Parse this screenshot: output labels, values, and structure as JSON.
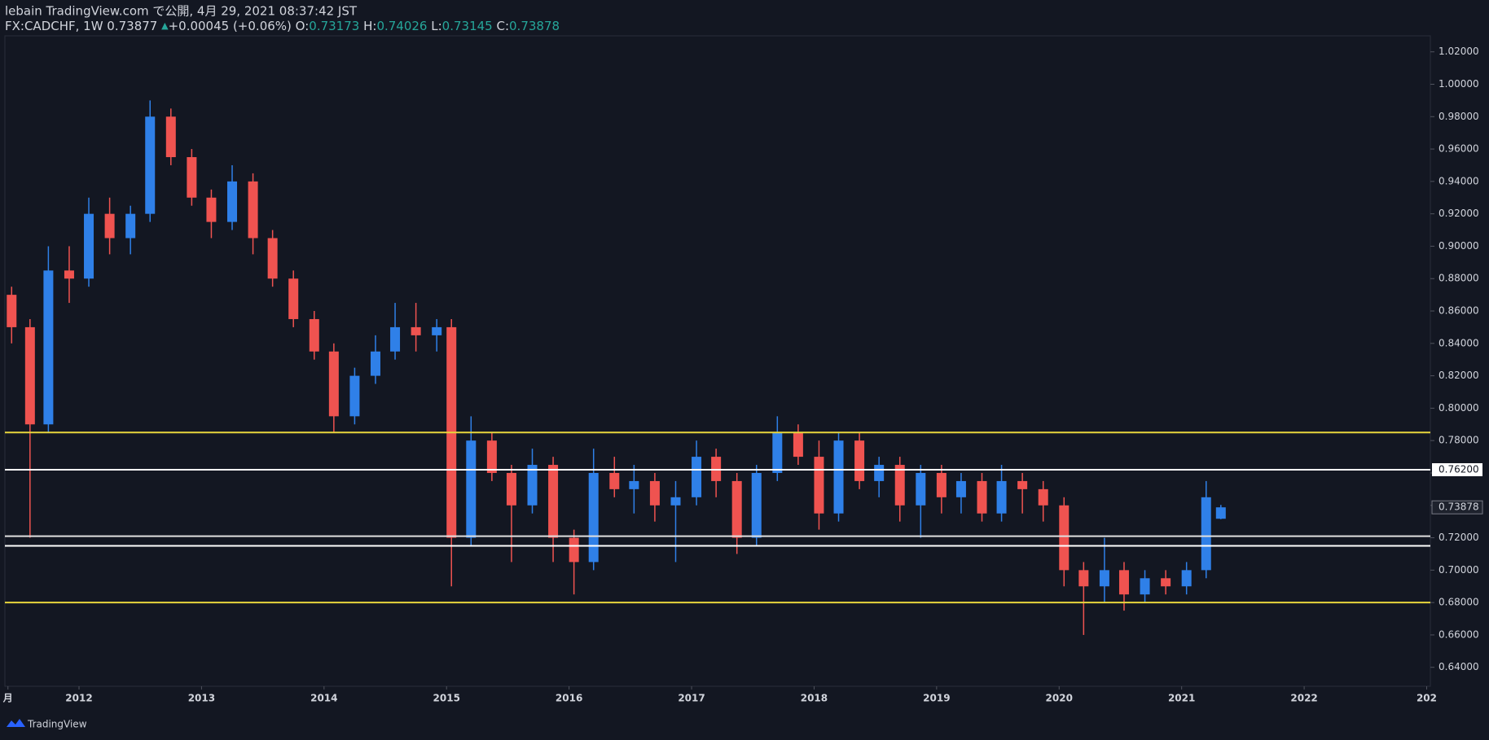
{
  "header": {
    "title": "lebain TradingView.com で公開, 4月 29, 2021 08:37:42 JST",
    "symbol": "FX:CADCHF, 1W 0.73877",
    "arrow": "▲",
    "change": "+0.00045 (+0.06%)",
    "ohlc": [
      {
        "key": "O:",
        "value": "0.73173"
      },
      {
        "key": "H:",
        "value": "0.74026"
      },
      {
        "key": "L:",
        "value": "0.73145"
      },
      {
        "key": "C:",
        "value": "0.73878"
      }
    ]
  },
  "footer": {
    "brand": "TradingView"
  },
  "chart_data": {
    "type": "candlestick",
    "up_color": "#2f80e8",
    "down_color": "#ef5350",
    "x": [
      2011.45,
      2011.6,
      2011.75,
      2011.92,
      2012.08,
      2012.25,
      2012.42,
      2012.58,
      2012.75,
      2012.92,
      2013.08,
      2013.25,
      2013.42,
      2013.58,
      2013.75,
      2013.92,
      2014.08,
      2014.25,
      2014.42,
      2014.58,
      2014.75,
      2014.92,
      2015.04,
      2015.2,
      2015.37,
      2015.53,
      2015.7,
      2015.87,
      2016.04,
      2016.2,
      2016.37,
      2016.53,
      2016.7,
      2016.87,
      2017.04,
      2017.2,
      2017.37,
      2017.53,
      2017.7,
      2017.87,
      2018.04,
      2018.2,
      2018.37,
      2018.53,
      2018.7,
      2018.87,
      2019.04,
      2019.2,
      2019.37,
      2019.53,
      2019.7,
      2019.87,
      2020.04,
      2020.2,
      2020.37,
      2020.53,
      2020.7,
      2020.87,
      2021.04,
      2021.2,
      2021.32
    ],
    "open": [
      0.87,
      0.85,
      0.79,
      0.885,
      0.88,
      0.92,
      0.905,
      0.92,
      0.98,
      0.955,
      0.93,
      0.915,
      0.94,
      0.905,
      0.88,
      0.855,
      0.835,
      0.795,
      0.82,
      0.835,
      0.85,
      0.845,
      0.85,
      0.72,
      0.78,
      0.76,
      0.74,
      0.765,
      0.72,
      0.705,
      0.76,
      0.75,
      0.755,
      0.74,
      0.745,
      0.77,
      0.755,
      0.72,
      0.76,
      0.785,
      0.77,
      0.735,
      0.78,
      0.755,
      0.765,
      0.74,
      0.76,
      0.745,
      0.755,
      0.735,
      0.755,
      0.75,
      0.74,
      0.7,
      0.69,
      0.7,
      0.685,
      0.695,
      0.69,
      0.7,
      0.73173
    ],
    "high": [
      0.875,
      0.855,
      0.9,
      0.9,
      0.93,
      0.93,
      0.925,
      0.99,
      0.985,
      0.96,
      0.935,
      0.95,
      0.945,
      0.91,
      0.885,
      0.86,
      0.84,
      0.825,
      0.845,
      0.865,
      0.865,
      0.855,
      0.855,
      0.795,
      0.785,
      0.765,
      0.775,
      0.77,
      0.725,
      0.775,
      0.77,
      0.765,
      0.76,
      0.755,
      0.78,
      0.775,
      0.76,
      0.765,
      0.795,
      0.79,
      0.78,
      0.785,
      0.785,
      0.77,
      0.77,
      0.765,
      0.765,
      0.76,
      0.76,
      0.765,
      0.76,
      0.755,
      0.745,
      0.705,
      0.72,
      0.705,
      0.7,
      0.7,
      0.705,
      0.755,
      0.74026
    ],
    "low": [
      0.84,
      0.72,
      0.785,
      0.865,
      0.875,
      0.895,
      0.895,
      0.915,
      0.95,
      0.925,
      0.905,
      0.91,
      0.895,
      0.875,
      0.85,
      0.83,
      0.785,
      0.79,
      0.815,
      0.83,
      0.835,
      0.835,
      0.69,
      0.715,
      0.755,
      0.705,
      0.735,
      0.705,
      0.685,
      0.7,
      0.745,
      0.735,
      0.73,
      0.705,
      0.74,
      0.745,
      0.71,
      0.715,
      0.755,
      0.765,
      0.725,
      0.73,
      0.75,
      0.745,
      0.73,
      0.72,
      0.735,
      0.735,
      0.73,
      0.73,
      0.735,
      0.73,
      0.69,
      0.66,
      0.68,
      0.675,
      0.68,
      0.685,
      0.685,
      0.695,
      0.73145
    ],
    "close": [
      0.85,
      0.79,
      0.885,
      0.88,
      0.92,
      0.905,
      0.92,
      0.98,
      0.955,
      0.93,
      0.915,
      0.94,
      0.905,
      0.88,
      0.855,
      0.835,
      0.795,
      0.82,
      0.835,
      0.85,
      0.845,
      0.85,
      0.72,
      0.78,
      0.76,
      0.74,
      0.765,
      0.72,
      0.705,
      0.76,
      0.75,
      0.755,
      0.74,
      0.745,
      0.77,
      0.755,
      0.72,
      0.76,
      0.785,
      0.77,
      0.735,
      0.78,
      0.755,
      0.765,
      0.74,
      0.76,
      0.745,
      0.755,
      0.735,
      0.755,
      0.75,
      0.74,
      0.7,
      0.69,
      0.7,
      0.685,
      0.695,
      0.69,
      0.7,
      0.745,
      0.73878
    ],
    "xlim": [
      2011.395,
      2023.03
    ],
    "xticks": [
      {
        "value": 2011.42,
        "label": "月"
      },
      2012,
      2013,
      2014,
      2015,
      2016,
      2017,
      2018,
      2019,
      2020,
      2021,
      2022,
      {
        "value": 2023,
        "label": "202"
      }
    ],
    "ylim": [
      0.6283,
      1.0299
    ],
    "yticks": [
      {
        "value": 0.64,
        "label": "0.64000"
      },
      {
        "value": 0.66,
        "label": "0.66000"
      },
      {
        "value": 0.68,
        "label": "0.68000"
      },
      {
        "value": 0.7,
        "label": "0.70000"
      },
      {
        "value": 0.72,
        "label": "0.72000"
      },
      {
        "value": 0.74,
        "label": "0.74000"
      },
      {
        "value": 0.76,
        "label": "0.76000"
      },
      {
        "value": 0.78,
        "label": "0.78000"
      },
      {
        "value": 0.8,
        "label": "0.80000"
      },
      {
        "value": 0.82,
        "label": "0.82000"
      },
      {
        "value": 0.84,
        "label": "0.84000"
      },
      {
        "value": 0.86,
        "label": "0.86000"
      },
      {
        "value": 0.88,
        "label": "0.88000"
      },
      {
        "value": 0.9,
        "label": "0.90000"
      },
      {
        "value": 0.92,
        "label": "0.92000"
      },
      {
        "value": 0.94,
        "label": "0.94000"
      },
      {
        "value": 0.96,
        "label": "0.96000"
      },
      {
        "value": 0.98,
        "label": "0.98000"
      },
      {
        "value": 1.0,
        "label": "1.00000"
      },
      {
        "value": 1.02,
        "label": "1.02000"
      }
    ],
    "hlines": [
      {
        "value": 0.785,
        "color": "#e8d63c"
      },
      {
        "value": 0.762,
        "color": "#ffffff",
        "label": "0.76200"
      },
      {
        "value": 0.721,
        "color": "#e0e0e0"
      },
      {
        "value": 0.715,
        "color": "#ffffff"
      },
      {
        "value": 0.68,
        "color": "#e8d63c"
      }
    ],
    "last_price": {
      "value": 0.73878,
      "label": "0.73878"
    }
  }
}
